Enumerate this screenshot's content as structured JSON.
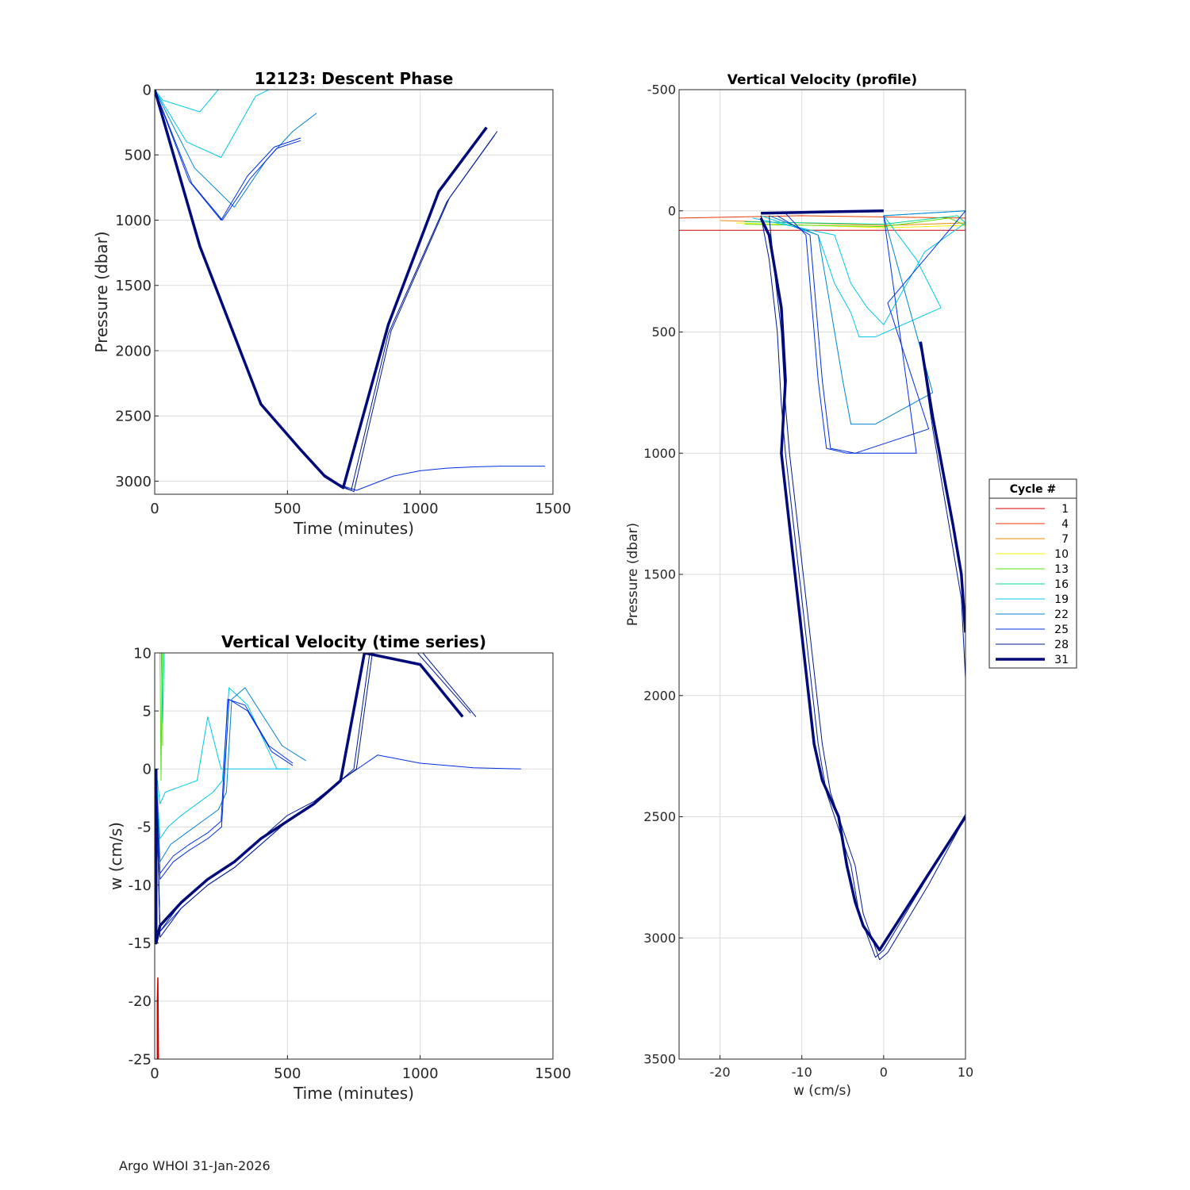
{
  "footer": "Argo WHOI 31-Jan-2026",
  "colors": {
    "c1": "#d40000",
    "c4": "#e83a00",
    "c7": "#f08a00",
    "c10": "#f5f000",
    "c13": "#58e010",
    "c16": "#00d890",
    "c19": "#00c8e8",
    "c22": "#0084d0",
    "c25": "#0030e0",
    "c28": "#001a90",
    "c31": "#000a78"
  },
  "chart_data": [
    {
      "id": "descent",
      "type": "line",
      "title": "12123: Descent Phase",
      "xlabel": "Time (minutes)",
      "ylabel": "Pressure (dbar)",
      "xlim": [
        0,
        1500
      ],
      "ylim": [
        3100,
        0
      ],
      "xticks": [
        0,
        500,
        1000,
        1500
      ],
      "yticks": [
        0,
        500,
        1000,
        1500,
        2000,
        2500,
        3000
      ],
      "grid": true,
      "series": [
        {
          "name": "19",
          "color": "#00c8e8",
          "width": 1,
          "x": [
            0,
            30,
            170,
            240,
            300,
            340
          ],
          "y": [
            0,
            80,
            170,
            0,
            0,
            0
          ]
        },
        {
          "name": "19b",
          "color": "#00c8e8",
          "width": 1,
          "x": [
            0,
            120,
            250,
            380,
            430,
            520
          ],
          "y": [
            0,
            400,
            520,
            50,
            0,
            0
          ]
        },
        {
          "name": "22",
          "color": "#0084d0",
          "width": 1,
          "x": [
            0,
            150,
            300,
            420,
            520,
            610
          ],
          "y": [
            0,
            600,
            900,
            540,
            320,
            180
          ]
        },
        {
          "name": "25",
          "color": "#0030e0",
          "width": 1,
          "x": [
            0,
            130,
            250,
            350,
            450,
            550
          ],
          "y": [
            0,
            700,
            1000,
            660,
            440,
            370
          ]
        },
        {
          "name": "25b",
          "color": "#0030e0",
          "width": 1,
          "x": [
            0,
            140,
            255,
            360,
            460,
            550
          ],
          "y": [
            0,
            720,
            1000,
            680,
            450,
            390
          ]
        },
        {
          "name": "25c",
          "color": "#0030e0",
          "width": 1,
          "x": [
            0,
            170,
            400,
            550,
            640,
            700,
            760,
            900,
            1000,
            1100,
            1200,
            1300,
            1470
          ],
          "y": [
            0,
            1200,
            2410,
            2750,
            2950,
            3030,
            3070,
            2960,
            2920,
            2900,
            2890,
            2885,
            2885
          ]
        },
        {
          "name": "28",
          "color": "#001a90",
          "width": 1,
          "x": [
            0,
            170,
            400,
            550,
            640,
            720,
            750,
            890,
            1110,
            1290
          ],
          "y": [
            0,
            1200,
            2410,
            2760,
            2960,
            3050,
            3080,
            1850,
            830,
            320
          ]
        },
        {
          "name": "28b",
          "color": "#001a90",
          "width": 1,
          "x": [
            0,
            170,
            400,
            550,
            640,
            710,
            740,
            880,
            1100,
            1280
          ],
          "y": [
            0,
            1200,
            2410,
            2770,
            2970,
            3050,
            3070,
            1870,
            860,
            350
          ]
        },
        {
          "name": "31",
          "color": "#000a78",
          "width": 3.5,
          "x": [
            0,
            170,
            400,
            550,
            640,
            710,
            880,
            1070,
            1250
          ],
          "y": [
            0,
            1200,
            2410,
            2760,
            2960,
            3050,
            1800,
            780,
            290
          ]
        }
      ]
    },
    {
      "id": "wtime",
      "type": "line",
      "title": "Vertical Velocity (time series)",
      "xlabel": "Time (minutes)",
      "ylabel": "w (cm/s)",
      "xlim": [
        0,
        1500
      ],
      "ylim": [
        -25,
        10
      ],
      "xticks": [
        0,
        500,
        1000,
        1500
      ],
      "yticks": [
        -25,
        -20,
        -15,
        -10,
        -5,
        0,
        5,
        10
      ],
      "grid": true,
      "series": [
        {
          "name": "1",
          "color": "#d40000",
          "width": 1.5,
          "x": [
            10,
            10,
            12,
            14
          ],
          "y": [
            -25,
            -20,
            -18,
            -25
          ]
        },
        {
          "name": "13",
          "color": "#58e010",
          "width": 1,
          "x": [
            20,
            24,
            28,
            30
          ],
          "y": [
            10,
            -1,
            10,
            2
          ]
        },
        {
          "name": "16",
          "color": "#00d890",
          "width": 1,
          "x": [
            25,
            30,
            35
          ],
          "y": [
            10,
            4,
            10
          ]
        },
        {
          "name": "19",
          "color": "#00c8e8",
          "width": 1,
          "x": [
            5,
            20,
            40,
            100,
            160,
            200,
            250,
            300,
            360,
            450,
            500
          ],
          "y": [
            0,
            -3,
            -2,
            -1.5,
            -1,
            4.5,
            0,
            0,
            0,
            0,
            0
          ]
        },
        {
          "name": "19b",
          "color": "#00c8e8",
          "width": 1,
          "x": [
            5,
            20,
            50,
            100,
            160,
            220,
            255,
            280,
            350,
            460,
            510
          ],
          "y": [
            0,
            -6,
            -5,
            -4,
            -3,
            -2,
            -1,
            7,
            5.5,
            0,
            0
          ]
        },
        {
          "name": "22",
          "color": "#0084d0",
          "width": 1,
          "x": [
            5,
            20,
            60,
            120,
            180,
            240,
            270,
            290,
            340,
            480,
            570
          ],
          "y": [
            0,
            -8,
            -6.5,
            -5.5,
            -4.5,
            -3.5,
            -2,
            6,
            7,
            2,
            0.7
          ]
        },
        {
          "name": "25",
          "color": "#0030e0",
          "width": 1,
          "x": [
            5,
            20,
            70,
            130,
            200,
            250,
            275,
            340,
            430,
            520
          ],
          "y": [
            0,
            -9,
            -7.5,
            -6.5,
            -5.5,
            -4.5,
            6,
            5.5,
            2,
            0.5
          ]
        },
        {
          "name": "25b",
          "color": "#0030e0",
          "width": 1,
          "x": [
            5,
            20,
            70,
            130,
            200,
            252,
            280,
            350,
            440,
            520
          ],
          "y": [
            0,
            -9.5,
            -8,
            -7,
            -6,
            -5,
            6,
            5,
            1.5,
            0.3
          ]
        },
        {
          "name": "25c",
          "color": "#0030e0",
          "width": 1,
          "x": [
            5,
            20,
            100,
            200,
            300,
            400,
            500,
            600,
            700,
            840,
            1000,
            1200,
            1380
          ],
          "y": [
            0,
            -14,
            -12,
            -10,
            -8.5,
            -6.5,
            -4.5,
            -3,
            -1,
            1.2,
            0.5,
            0.1,
            0
          ]
        },
        {
          "name": "28",
          "color": "#001a90",
          "width": 1,
          "x": [
            5,
            20,
            100,
            200,
            300,
            400,
            500,
            600,
            700,
            760,
            820,
            1010,
            1210
          ],
          "y": [
            0,
            -14.5,
            -12,
            -10,
            -8.5,
            -6.5,
            -4.5,
            -3,
            -1,
            0,
            10,
            10,
            4.5
          ]
        },
        {
          "name": "28b",
          "color": "#001a90",
          "width": 1,
          "x": [
            5,
            20,
            100,
            200,
            300,
            400,
            500,
            600,
            700,
            750,
            810,
            990,
            1190
          ],
          "y": [
            0,
            -14,
            -11.5,
            -9.5,
            -8,
            -6,
            -4,
            -2.8,
            -1,
            0,
            10,
            10,
            4.8
          ]
        },
        {
          "name": "31",
          "color": "#000a78",
          "width": 3.5,
          "x": [
            5,
            5,
            20,
            100,
            200,
            300,
            400,
            500,
            600,
            700,
            790,
            1000,
            1160
          ],
          "y": [
            0,
            -15,
            -13.5,
            -11.5,
            -9.5,
            -8,
            -6,
            -4.5,
            -3,
            -1,
            10,
            9,
            4.5
          ]
        }
      ]
    },
    {
      "id": "wprofile",
      "type": "line",
      "title": "Vertical Velocity (profile)",
      "xlabel": "w (cm/s)",
      "ylabel": "Pressure (dbar)",
      "xlim": [
        -25,
        10
      ],
      "ylim": [
        3500,
        -500
      ],
      "xticks": [
        -20,
        -10,
        0,
        10
      ],
      "yticks": [
        -500,
        0,
        500,
        1000,
        1500,
        2000,
        2500,
        3000,
        3500
      ],
      "grid": true,
      "legend": {
        "title": "Cycle #",
        "position": "right-outside",
        "entries": [
          "1",
          "4",
          "7",
          "10",
          "13",
          "16",
          "19",
          "22",
          "25",
          "28",
          "31"
        ]
      },
      "series": [
        {
          "name": "1",
          "color": "#d40000",
          "width": 1,
          "x": [
            -25,
            10
          ],
          "y": [
            80,
            80
          ]
        },
        {
          "name": "4",
          "color": "#e83a00",
          "width": 1,
          "x": [
            -25,
            -10,
            10
          ],
          "y": [
            30,
            20,
            30
          ]
        },
        {
          "name": "7",
          "color": "#f08a00",
          "width": 1,
          "x": [
            -20,
            0,
            10
          ],
          "y": [
            40,
            60,
            50
          ]
        },
        {
          "name": "10",
          "color": "#f5f000",
          "width": 1,
          "x": [
            -18,
            0,
            10
          ],
          "y": [
            50,
            70,
            60
          ]
        },
        {
          "name": "13",
          "color": "#58e010",
          "width": 1,
          "x": [
            -17,
            0,
            8,
            10
          ],
          "y": [
            55,
            65,
            30,
            60
          ]
        },
        {
          "name": "16",
          "color": "#00d890",
          "width": 1,
          "x": [
            -17,
            0,
            9,
            10
          ],
          "y": [
            45,
            55,
            20,
            50
          ]
        },
        {
          "name": "19",
          "color": "#00c8e8",
          "width": 1,
          "x": [
            -16,
            -6,
            -4,
            -2,
            0,
            5,
            10,
            10
          ],
          "y": [
            30,
            100,
            300,
            400,
            470,
            170,
            50,
            20
          ]
        },
        {
          "name": "19b",
          "color": "#00c8e8",
          "width": 1,
          "x": [
            -15,
            -8,
            -6,
            -4,
            -3,
            -1,
            7,
            4,
            0,
            10
          ],
          "y": [
            20,
            100,
            300,
            420,
            520,
            520,
            400,
            200,
            20,
            0
          ]
        },
        {
          "name": "22",
          "color": "#0084d0",
          "width": 1,
          "x": [
            -14,
            -8,
            -7,
            -6,
            -5,
            -4,
            -1,
            6,
            0,
            10
          ],
          "y": [
            20,
            100,
            300,
            500,
            700,
            880,
            880,
            750,
            20,
            0
          ]
        },
        {
          "name": "25",
          "color": "#0030e0",
          "width": 1,
          "x": [
            -13,
            -9,
            -8.5,
            -8,
            -7.5,
            -6.5,
            -3.5,
            5.5,
            0.5,
            10
          ],
          "y": [
            20,
            100,
            300,
            500,
            700,
            980,
            1000,
            900,
            380,
            0
          ]
        },
        {
          "name": "25b",
          "color": "#0030e0",
          "width": 1,
          "x": [
            -12,
            -9.5,
            -9,
            -8.5,
            -8,
            -7,
            -4.5,
            4,
            0
          ],
          "y": [
            10,
            100,
            300,
            500,
            700,
            980,
            1000,
            1000,
            20
          ]
        },
        {
          "name": "28",
          "color": "#001a90",
          "width": 1,
          "x": [
            -15,
            -14,
            -13,
            -12.5,
            -12,
            -11,
            -10,
            -9,
            -8,
            -7,
            -6,
            -5,
            -4,
            -3,
            -1,
            0,
            5,
            10
          ],
          "y": [
            20,
            200,
            500,
            800,
            1000,
            1300,
            1600,
            1900,
            2200,
            2400,
            2500,
            2600,
            2700,
            2900,
            3080,
            3050,
            2770,
            2490
          ]
        },
        {
          "name": "28b",
          "color": "#001a90",
          "width": 1,
          "x": [
            -14,
            -13.5,
            -12.5,
            -12,
            -11.5,
            -10.5,
            -9.5,
            -8.5,
            -7.5,
            -6.5,
            -5.5,
            -4.5,
            -3.5,
            -2.5,
            -0.5,
            0.5,
            5.5,
            10
          ],
          "y": [
            20,
            200,
            500,
            800,
            1000,
            1300,
            1600,
            1900,
            2200,
            2400,
            2500,
            2600,
            2700,
            2900,
            3090,
            3060,
            2780,
            2500
          ]
        },
        {
          "name": "28c",
          "color": "#001a90",
          "width": 1,
          "x": [
            4.5,
            6,
            8,
            9.5,
            10
          ],
          "y": [
            550,
            900,
            1300,
            1600,
            1930
          ]
        },
        {
          "name": "31",
          "color": "#000a78",
          "width": 3.5,
          "x": [
            -15,
            -14,
            -12.5,
            -12,
            -12.5,
            -11.5,
            -10.5,
            -9.5,
            -8.5,
            -7.5,
            -5.5,
            -4.5,
            -3.5,
            -2.5,
            -0.5,
            10
          ],
          "y": [
            30,
            100,
            400,
            700,
            1000,
            1300,
            1600,
            1900,
            2200,
            2350,
            2500,
            2700,
            2850,
            2950,
            3050,
            2500
          ]
        },
        {
          "name": "31b",
          "color": "#000a78",
          "width": 3.5,
          "x": [
            4.5,
            6,
            8.5,
            9.5,
            10
          ],
          "y": [
            540,
            850,
            1300,
            1500,
            1740
          ]
        },
        {
          "name": "31c",
          "color": "#000a78",
          "width": 3.5,
          "x": [
            -15,
            -8,
            0
          ],
          "y": [
            10,
            5,
            0
          ]
        }
      ]
    }
  ]
}
